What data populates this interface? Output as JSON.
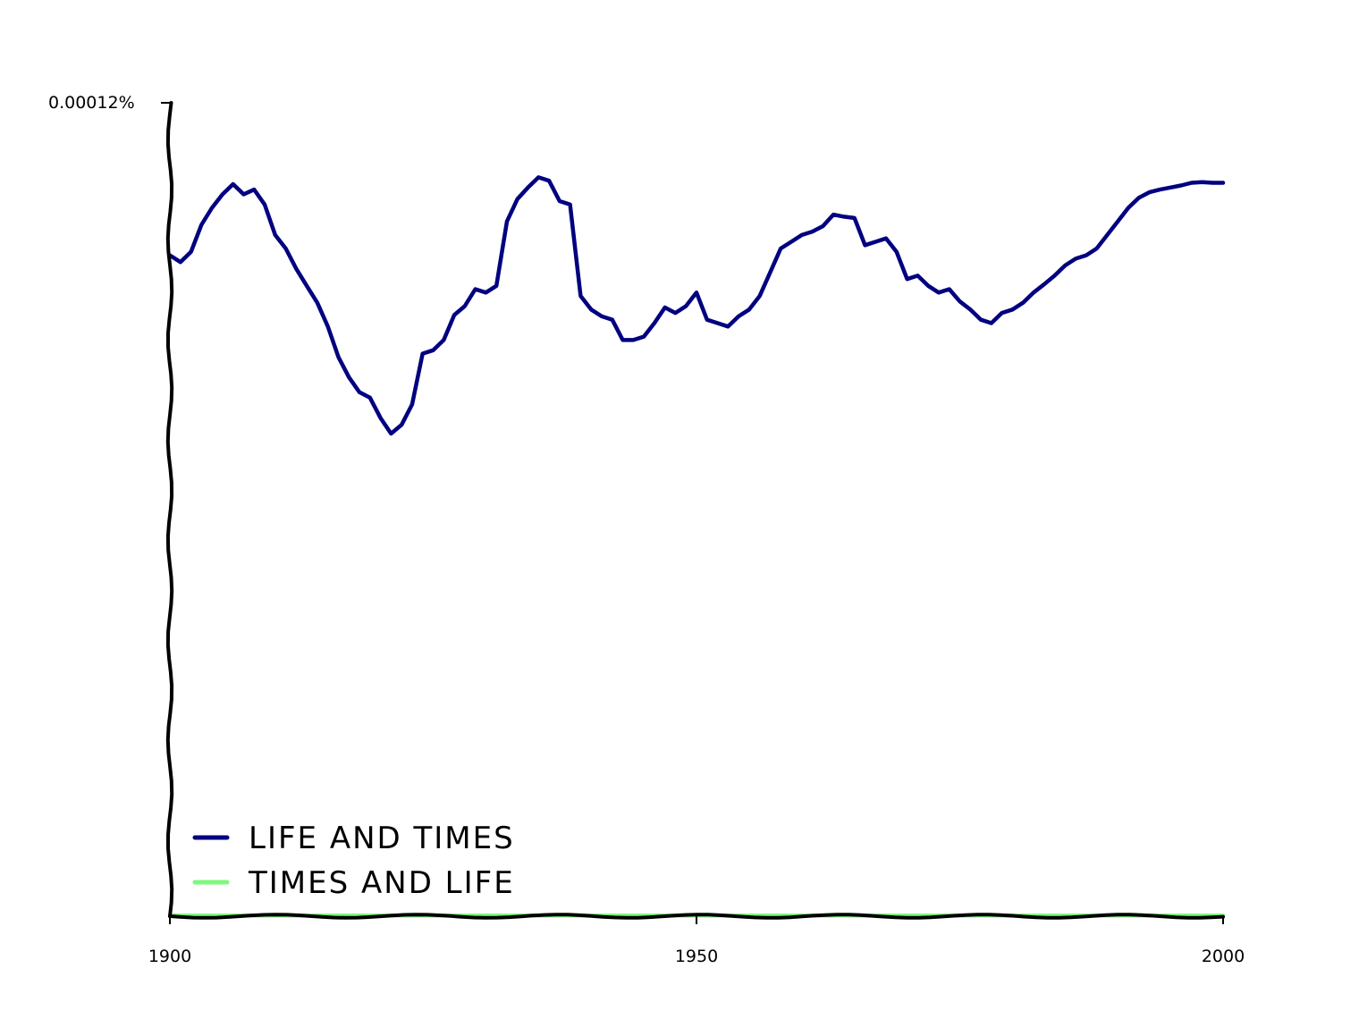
{
  "chart_data": {
    "type": "line",
    "title": "",
    "xlabel": "",
    "ylabel": "",
    "xlim": [
      1900,
      2000
    ],
    "ylim": [
      0,
      0.00012
    ],
    "x_ticks": [
      "1900",
      "1950",
      "2000"
    ],
    "y_ticks": [
      "0.00012%"
    ],
    "legend_position": "bottom-left",
    "grid": false,
    "series": [
      {
        "name": "life and times",
        "color": "#000080",
        "x": [
          1900,
          1901,
          1902,
          1903,
          1904,
          1905,
          1906,
          1907,
          1908,
          1909,
          1910,
          1911,
          1912,
          1913,
          1914,
          1915,
          1916,
          1917,
          1918,
          1919,
          1920,
          1921,
          1922,
          1923,
          1924,
          1925,
          1926,
          1927,
          1928,
          1929,
          1930,
          1931,
          1932,
          1933,
          1934,
          1935,
          1936,
          1937,
          1938,
          1939,
          1940,
          1941,
          1942,
          1943,
          1944,
          1945,
          1946,
          1947,
          1948,
          1949,
          1950,
          1951,
          1952,
          1953,
          1954,
          1955,
          1956,
          1957,
          1958,
          1959,
          1960,
          1961,
          1962,
          1963,
          1964,
          1965,
          1966,
          1967,
          1968,
          1969,
          1970,
          1971,
          1972,
          1973,
          1974,
          1975,
          1976,
          1977,
          1978,
          1979,
          1980,
          1981,
          1982,
          1983,
          1984,
          1985,
          1986,
          1987,
          1988,
          1989,
          1990,
          1991,
          1992,
          1993,
          1994,
          1995,
          1996,
          1997,
          1998,
          1999,
          2000
        ],
        "values": [
          9.75e-05,
          9.65e-05,
          9.8e-05,
          0.000102,
          0.0001045,
          0.0001065,
          0.000108,
          0.0001065,
          0.0001072,
          0.000105,
          0.0001005,
          9.85e-05,
          9.55e-05,
          9.3e-05,
          9.05e-05,
          8.7e-05,
          8.25e-05,
          7.95e-05,
          7.73e-05,
          7.65e-05,
          7.35e-05,
          7.12e-05,
          7.25e-05,
          7.55e-05,
          8.3e-05,
          8.35e-05,
          8.5e-05,
          8.87e-05,
          9e-05,
          9.25e-05,
          9.2e-05,
          9.3e-05,
          0.0001025,
          0.0001058,
          0.0001075,
          0.000109,
          0.0001085,
          0.0001055,
          0.000105,
          9.15e-05,
          8.95e-05,
          8.85e-05,
          8.8e-05,
          8.5e-05,
          8.5e-05,
          8.55e-05,
          8.75e-05,
          8.98e-05,
          8.9e-05,
          9e-05,
          9.2e-05,
          8.8e-05,
          8.75e-05,
          8.7e-05,
          8.85e-05,
          8.95e-05,
          9.15e-05,
          9.5e-05,
          9.85e-05,
          9.95e-05,
          0.0001005,
          0.000101,
          0.0001018,
          0.0001035,
          0.0001032,
          0.000103,
          9.9e-05,
          9.95e-05,
          0.0001,
          9.8e-05,
          9.4e-05,
          9.45e-05,
          9.3e-05,
          9.2e-05,
          9.25e-05,
          9.07e-05,
          8.95e-05,
          8.8e-05,
          8.75e-05,
          8.9e-05,
          8.95e-05,
          9.05e-05,
          9.2e-05,
          9.32e-05,
          9.45e-05,
          9.6e-05,
          9.7e-05,
          9.75e-05,
          9.85e-05,
          0.0001005,
          0.0001025,
          0.0001045,
          0.000106,
          0.0001068,
          0.0001072,
          0.0001075,
          0.0001078,
          0.0001082,
          0.0001083,
          0.0001082,
          0.0001082
        ]
      },
      {
        "name": "times and life",
        "color": "#7ef87e",
        "x": [
          1900,
          1910,
          1920,
          1930,
          1940,
          1950,
          1960,
          1970,
          1980,
          1990,
          2000
        ],
        "values": [
          1e-07,
          1e-07,
          1e-07,
          1e-07,
          1e-07,
          1e-07,
          1e-07,
          1e-07,
          1e-07,
          1e-07,
          1e-07
        ]
      }
    ]
  }
}
